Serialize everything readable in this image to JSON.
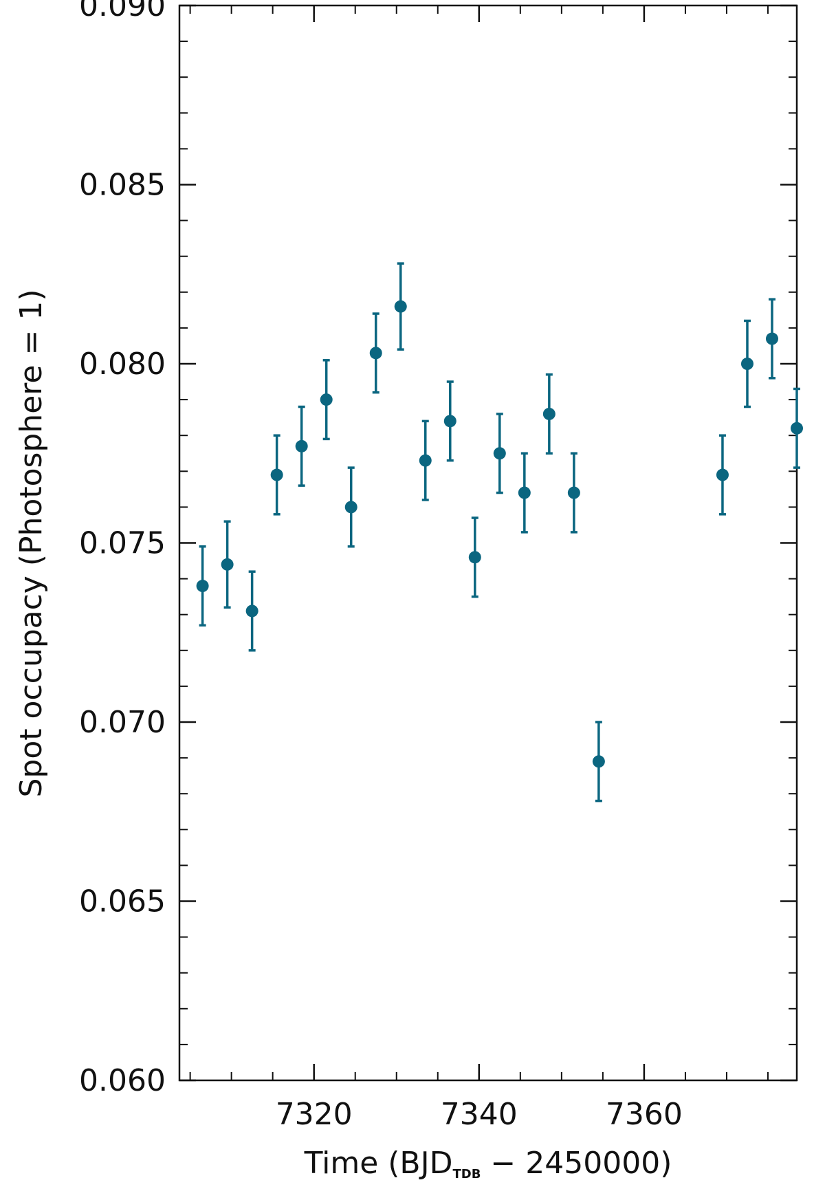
{
  "chart_data": {
    "type": "scatter",
    "title": "",
    "xlabel": {
      "prefix": "Time (BJD",
      "subscript": "TDB",
      "suffix": " − 2450000)"
    },
    "ylabel": "Spot occupacy (Photosphere = 1)",
    "xlim": [
      7303.7,
      7378.5
    ],
    "ylim": [
      0.06,
      0.09
    ],
    "x_ticks": [
      7320,
      7340,
      7360
    ],
    "x_tick_labels": [
      "7320",
      "7340",
      "7360"
    ],
    "x_minor_step": 5,
    "y_ticks": [
      0.06,
      0.065,
      0.07,
      0.075,
      0.08,
      0.085,
      0.09
    ],
    "y_tick_labels": [
      "0.060",
      "0.065",
      "0.070",
      "0.075",
      "0.080",
      "0.085",
      "0.090"
    ],
    "y_minor_step": 0.001,
    "grid": false,
    "marker_color": "#0b6680",
    "series": [
      {
        "x": [
          7306.5,
          7309.5,
          7312.5,
          7315.5,
          7318.5,
          7321.5,
          7324.5,
          7327.5,
          7330.5,
          7333.5,
          7336.5,
          7339.5,
          7342.5,
          7345.5,
          7348.5,
          7351.5,
          7354.5,
          7369.5,
          7372.5,
          7375.5,
          7378.5
        ],
        "y": [
          0.0738,
          0.0744,
          0.0731,
          0.0769,
          0.0777,
          0.079,
          0.076,
          0.0803,
          0.0816,
          0.0773,
          0.0784,
          0.0746,
          0.0775,
          0.0764,
          0.0786,
          0.0764,
          0.0689,
          0.0769,
          0.08,
          0.0807,
          0.0782
        ],
        "yerr": [
          0.0011,
          0.0012,
          0.0011,
          0.0011,
          0.0011,
          0.0011,
          0.0011,
          0.0011,
          0.0012,
          0.0011,
          0.0011,
          0.0011,
          0.0011,
          0.0011,
          0.0011,
          0.0011,
          0.0011,
          0.0011,
          0.0012,
          0.0011,
          0.0011
        ]
      }
    ]
  }
}
